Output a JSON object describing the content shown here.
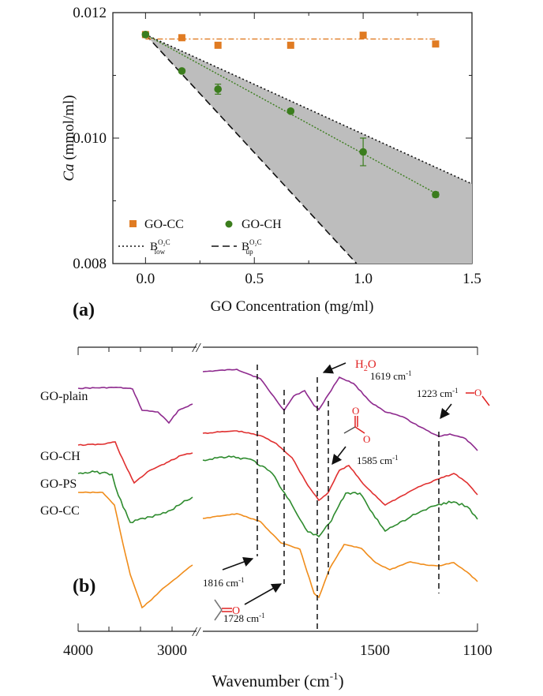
{
  "chart_data": [
    {
      "panel": "(a)",
      "type": "scatter",
      "xlabel": "GO Concentration (mg/ml)",
      "ylabel_italic": "Ca",
      "ylabel_unit": " (mmol/ml)",
      "xlim": [
        -0.15,
        1.5
      ],
      "ylim": [
        0.008,
        0.012
      ],
      "x_ticks": [
        {
          "v": 0.0,
          "label": "0.0"
        },
        {
          "v": 0.5,
          "label": "0.5"
        },
        {
          "v": 1.0,
          "label": "1.0"
        },
        {
          "v": 1.5,
          "label": "1.5"
        }
      ],
      "y_ticks": [
        {
          "v": 0.008,
          "label": "0.008"
        },
        {
          "v": 0.01,
          "label": "0.010"
        },
        {
          "v": 0.012,
          "label": "0.012"
        }
      ],
      "series": [
        {
          "name": "GO-CC",
          "marker": "square",
          "color": "#e07b22",
          "x": [
            0.0,
            0.167,
            0.333,
            0.667,
            1.0,
            1.333
          ],
          "y": [
            0.01165,
            0.0116,
            0.01148,
            0.01148,
            0.01164,
            0.0115
          ],
          "err": [
            3e-05,
            3e-05,
            3e-05,
            4e-05,
            3e-05,
            4e-05
          ],
          "fit": {
            "x": [
              0.0,
              1.333
            ],
            "y": [
              0.01158,
              0.01158
            ],
            "style": "dash-dot"
          }
        },
        {
          "name": "GO-CH",
          "marker": "circle",
          "color": "#3b7d1d",
          "x": [
            0.0,
            0.167,
            0.333,
            0.667,
            1.0,
            1.333
          ],
          "y": [
            0.01165,
            0.01107,
            0.01078,
            0.01043,
            0.00978,
            0.0091
          ],
          "err": [
            3e-05,
            3e-05,
            8e-05,
            3e-05,
            0.00022,
            4e-05
          ],
          "fit": {
            "x": [
              0.0,
              1.333
            ],
            "y": [
              0.01165,
              0.00912
            ],
            "style": "dotted"
          }
        }
      ],
      "bounds": [
        {
          "name_base": "B",
          "sup": "O₂C",
          "sub": "low",
          "style": "dotted",
          "x": [
            0.0,
            1.5
          ],
          "y": [
            0.01165,
            0.00927
          ]
        },
        {
          "name_base": "B",
          "sup": "O₂C",
          "sub": "up",
          "style": "dashed",
          "x": [
            0.0,
            0.97
          ],
          "y": [
            0.01165,
            0.008
          ]
        }
      ],
      "shaded_fill": "#bdbdbd",
      "legend": "lower-left"
    },
    {
      "panel": "(b)",
      "type": "line",
      "xlabel": "Wavenumber (cm",
      "xlabel_sup": "-1",
      "xlabel_end": ")",
      "axis_break": "//",
      "x_ticks": [
        {
          "v": 4000,
          "label": "4000"
        },
        {
          "v": 3000,
          "label": "3000"
        },
        {
          "v": 1500,
          "label": "1500"
        },
        {
          "v": 1100,
          "label": "1100"
        }
      ],
      "series": [
        {
          "name": "GO-plain",
          "color": "#8e2a8e"
        },
        {
          "name": "GO-CH",
          "color": "#e03030"
        },
        {
          "name": "GO-PS",
          "color": "#2e8b2e"
        },
        {
          "name": "GO-CC",
          "color": "#f08c1a"
        }
      ],
      "annotations": [
        {
          "id": "a1816",
          "label": "1816 cm",
          "sup": "-1",
          "x": 1816
        },
        {
          "id": "a1728",
          "label": "1728 cm",
          "sup": "-1",
          "x": 1728
        },
        {
          "id": "a1619",
          "label": "1619 cm",
          "sup": "-1",
          "x": 1619,
          "group": "H₂O"
        },
        {
          "id": "a1585",
          "label": "1585 cm",
          "sup": "-1",
          "x": 1585
        },
        {
          "id": "a1223",
          "label": "1223 cm",
          "sup": "-1",
          "x": 1223
        }
      ],
      "group_color": "#e02020",
      "group_text": {
        "h": "H",
        "two": "2",
        "o": "O",
        "carbonyl_o": "O",
        "ether_o": "O"
      }
    }
  ]
}
